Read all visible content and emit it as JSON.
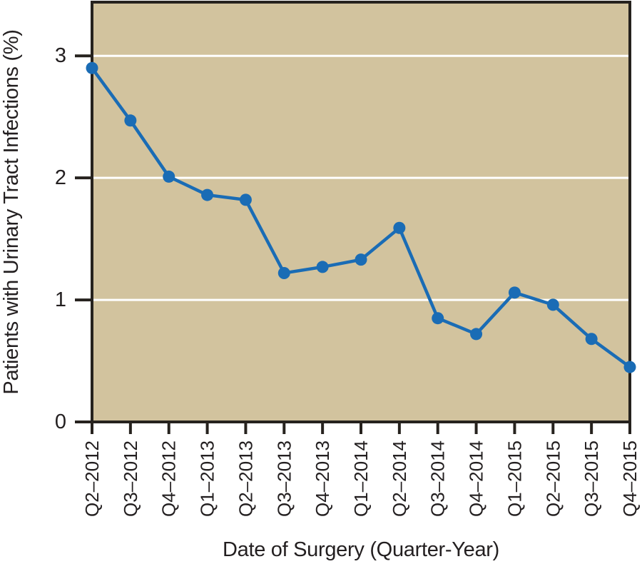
{
  "chart_data": {
    "type": "line",
    "title": "",
    "xlabel": "Date of Surgery (Quarter-Year)",
    "ylabel": "Patients with Urinary Tract Infections (%)",
    "categories": [
      "Q2–2012",
      "Q3–2012",
      "Q4–2012",
      "Q1–2013",
      "Q2–2013",
      "Q3–2013",
      "Q4–2013",
      "Q1–2014",
      "Q2–2014",
      "Q3–2014",
      "Q4–2014",
      "Q1–2015",
      "Q2–2015",
      "Q3–2015",
      "Q4–2015"
    ],
    "values": [
      2.9,
      2.47,
      2.01,
      1.86,
      1.82,
      1.22,
      1.27,
      1.33,
      1.59,
      0.85,
      0.72,
      1.06,
      0.96,
      0.68,
      0.45
    ],
    "ylim": [
      0,
      3.44
    ],
    "yticks": [
      0,
      1,
      2,
      3
    ],
    "grid": true,
    "legend": false,
    "colors": {
      "line": "#1a6cb5",
      "marker": "#1a6cb5",
      "plot_background": "#d2c39e",
      "gridline": "#ffffff",
      "axis": "#26221e",
      "text": "#231f20",
      "page_background": "#ffffff"
    }
  }
}
